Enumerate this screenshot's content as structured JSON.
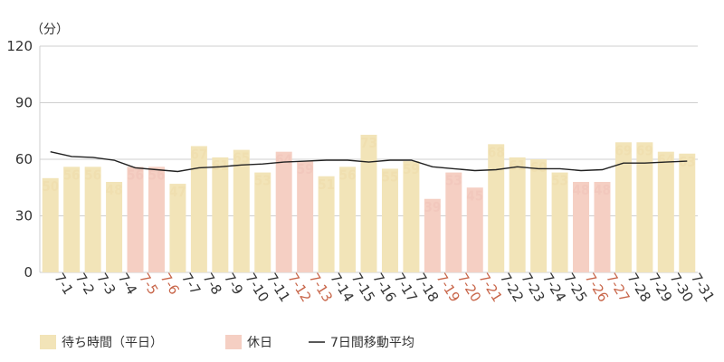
{
  "chart_data": {
    "type": "bar",
    "unit": "（分）",
    "ylim": [
      0,
      120
    ],
    "yticks": [
      0,
      30,
      60,
      90,
      120
    ],
    "grid": true,
    "legend_position": "bottom-left",
    "legend": [
      {
        "label": "待ち時間（平日）",
        "kind": "weekday",
        "color": "#f2e4b8"
      },
      {
        "label": "休日",
        "kind": "holiday",
        "color": "#f5cfc3"
      },
      {
        "label": "7日間移動平均",
        "kind": "line",
        "color": "#222222"
      }
    ],
    "categories": [
      "7-1",
      "7-2",
      "7-3",
      "7-4",
      "7-5",
      "7-6",
      "7-7",
      "7-8",
      "7-9",
      "7-10",
      "7-11",
      "7-12",
      "7-13",
      "7-14",
      "7-15",
      "7-16",
      "7-17",
      "7-18",
      "7-19",
      "7-20",
      "7-21",
      "7-22",
      "7-23",
      "7-24",
      "7-25",
      "7-26",
      "7-27",
      "7-28",
      "7-29",
      "7-30",
      "7-31"
    ],
    "values": [
      50,
      56,
      56,
      48,
      56,
      56,
      47,
      67,
      61,
      65,
      53,
      64,
      59,
      51,
      56,
      73,
      55,
      59,
      39,
      53,
      45,
      68,
      61,
      60,
      53,
      48,
      48,
      69,
      69,
      64,
      63
    ],
    "holidays": [
      false,
      false,
      false,
      false,
      true,
      true,
      false,
      false,
      false,
      false,
      false,
      true,
      true,
      false,
      false,
      false,
      false,
      false,
      true,
      true,
      true,
      false,
      false,
      false,
      false,
      true,
      true,
      false,
      false,
      false,
      false
    ],
    "moving_average": [
      64,
      61.5,
      61,
      59.5,
      55.5,
      54.5,
      53.5,
      55.5,
      56,
      57,
      57.5,
      58.5,
      59,
      59.5,
      59.5,
      58.5,
      59.5,
      59.5,
      56,
      55,
      54,
      54.5,
      56,
      55,
      55,
      54,
      54.5,
      58,
      58,
      58.5,
      59
    ]
  }
}
